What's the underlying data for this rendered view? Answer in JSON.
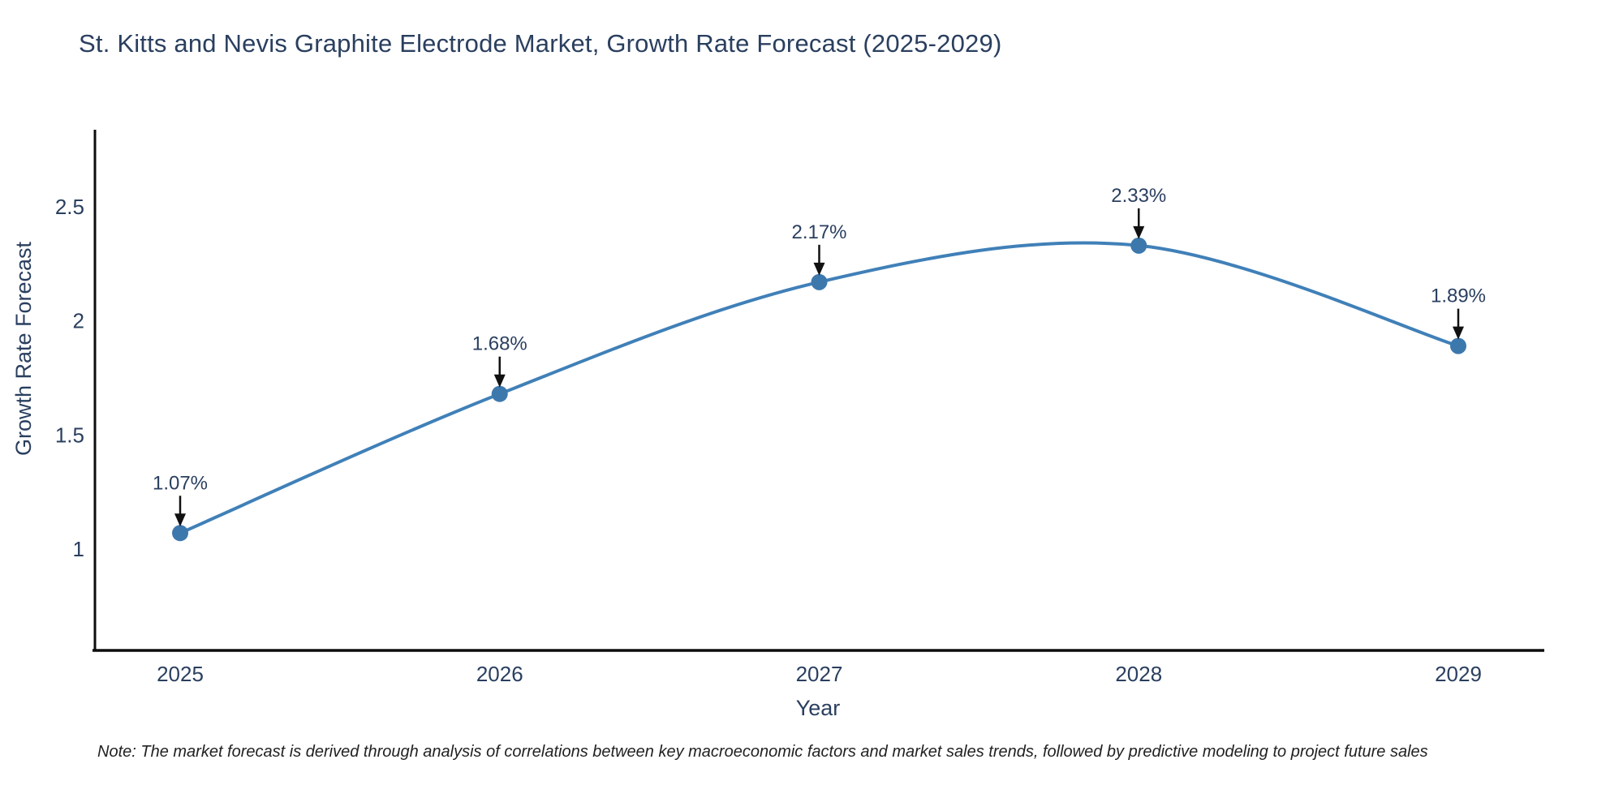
{
  "title": "St. Kitts and Nevis Graphite Electrode Market, Growth Rate Forecast (2025-2029)",
  "note": "Note: The market forecast is derived through analysis of correlations between key macroeconomic factors and market sales trends, followed by predictive modeling to project future sales",
  "chart_data": {
    "type": "line",
    "title": "St. Kitts and Nevis Graphite Electrode Market, Growth Rate Forecast (2025-2029)",
    "x": [
      2025,
      2026,
      2027,
      2028,
      2029
    ],
    "series": [
      {
        "name": "Growth Rate Forecast",
        "values": [
          1.07,
          1.68,
          2.17,
          2.33,
          1.89
        ],
        "point_labels": [
          "1.07%",
          "1.68%",
          "2.17%",
          "2.33%",
          "1.89%"
        ]
      }
    ],
    "xlabel": "Year",
    "ylabel": "Growth Rate Forecast",
    "x_tick_labels": [
      "2025",
      "2026",
      "2027",
      "2028",
      "2029"
    ],
    "y_tick_labels": [
      "1",
      "1.5",
      "2",
      "2.5"
    ],
    "y_tick_values": [
      1,
      1.5,
      2,
      2.5
    ],
    "ylim": [
      0.56,
      2.84
    ],
    "grid": false,
    "legend": false,
    "line_shape": "spline",
    "markers": true,
    "colors": {
      "line": "#4080b8",
      "marker": "#3d78ad",
      "axis": "#0d0d0d",
      "text": "#2a3f5f",
      "annotation_arrow": "#111111"
    }
  }
}
